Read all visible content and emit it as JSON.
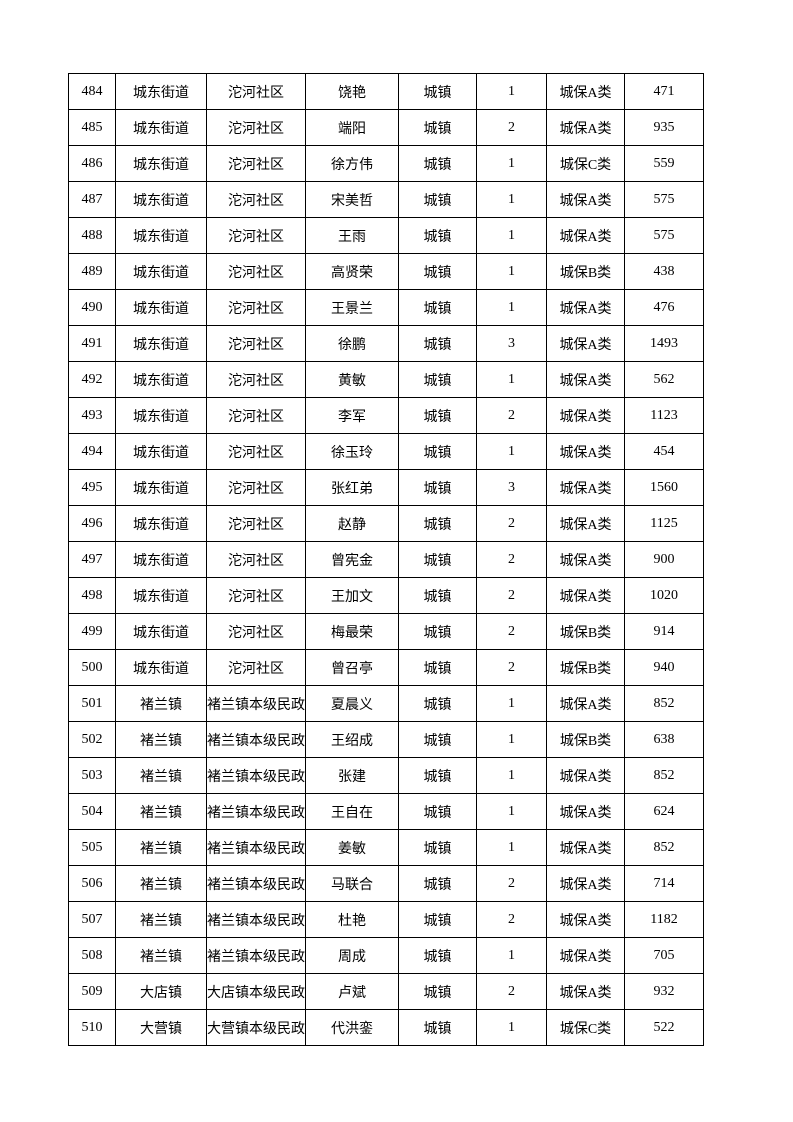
{
  "table": {
    "rows": [
      [
        "484",
        "城东街道",
        "沱河社区",
        "饶艳",
        "城镇",
        "1",
        "城保A类",
        "471"
      ],
      [
        "485",
        "城东街道",
        "沱河社区",
        "端阳",
        "城镇",
        "2",
        "城保A类",
        "935"
      ],
      [
        "486",
        "城东街道",
        "沱河社区",
        "徐方伟",
        "城镇",
        "1",
        "城保C类",
        "559"
      ],
      [
        "487",
        "城东街道",
        "沱河社区",
        "宋美哲",
        "城镇",
        "1",
        "城保A类",
        "575"
      ],
      [
        "488",
        "城东街道",
        "沱河社区",
        "王雨",
        "城镇",
        "1",
        "城保A类",
        "575"
      ],
      [
        "489",
        "城东街道",
        "沱河社区",
        "高贤荣",
        "城镇",
        "1",
        "城保B类",
        "438"
      ],
      [
        "490",
        "城东街道",
        "沱河社区",
        "王景兰",
        "城镇",
        "1",
        "城保A类",
        "476"
      ],
      [
        "491",
        "城东街道",
        "沱河社区",
        "徐鹏",
        "城镇",
        "3",
        "城保A类",
        "1493"
      ],
      [
        "492",
        "城东街道",
        "沱河社区",
        "黄敏",
        "城镇",
        "1",
        "城保A类",
        "562"
      ],
      [
        "493",
        "城东街道",
        "沱河社区",
        "李军",
        "城镇",
        "2",
        "城保A类",
        "1123"
      ],
      [
        "494",
        "城东街道",
        "沱河社区",
        "徐玉玲",
        "城镇",
        "1",
        "城保A类",
        "454"
      ],
      [
        "495",
        "城东街道",
        "沱河社区",
        "张红弟",
        "城镇",
        "3",
        "城保A类",
        "1560"
      ],
      [
        "496",
        "城东街道",
        "沱河社区",
        "赵静",
        "城镇",
        "2",
        "城保A类",
        "1125"
      ],
      [
        "497",
        "城东街道",
        "沱河社区",
        "曾宪金",
        "城镇",
        "2",
        "城保A类",
        "900"
      ],
      [
        "498",
        "城东街道",
        "沱河社区",
        "王加文",
        "城镇",
        "2",
        "城保A类",
        "1020"
      ],
      [
        "499",
        "城东街道",
        "沱河社区",
        "梅最荣",
        "城镇",
        "2",
        "城保B类",
        "914"
      ],
      [
        "500",
        "城东街道",
        "沱河社区",
        "曾召亭",
        "城镇",
        "2",
        "城保B类",
        "940"
      ],
      [
        "501",
        "褚兰镇",
        "褚兰镇本级民政",
        "夏晨义",
        "城镇",
        "1",
        "城保A类",
        "852"
      ],
      [
        "502",
        "褚兰镇",
        "褚兰镇本级民政",
        "王绍成",
        "城镇",
        "1",
        "城保B类",
        "638"
      ],
      [
        "503",
        "褚兰镇",
        "褚兰镇本级民政",
        "张建",
        "城镇",
        "1",
        "城保A类",
        "852"
      ],
      [
        "504",
        "褚兰镇",
        "褚兰镇本级民政",
        "王自在",
        "城镇",
        "1",
        "城保A类",
        "624"
      ],
      [
        "505",
        "褚兰镇",
        "褚兰镇本级民政",
        "姜敏",
        "城镇",
        "1",
        "城保A类",
        "852"
      ],
      [
        "506",
        "褚兰镇",
        "褚兰镇本级民政",
        "马联合",
        "城镇",
        "2",
        "城保A类",
        "714"
      ],
      [
        "507",
        "褚兰镇",
        "褚兰镇本级民政",
        "杜艳",
        "城镇",
        "2",
        "城保A类",
        "1182"
      ],
      [
        "508",
        "褚兰镇",
        "褚兰镇本级民政",
        "周成",
        "城镇",
        "1",
        "城保A类",
        "705"
      ],
      [
        "509",
        "大店镇",
        "大店镇本级民政",
        "卢斌",
        "城镇",
        "2",
        "城保A类",
        "932"
      ],
      [
        "510",
        "大营镇",
        "大营镇本级民政",
        "代洪銮",
        "城镇",
        "1",
        "城保C类",
        "522"
      ]
    ]
  }
}
